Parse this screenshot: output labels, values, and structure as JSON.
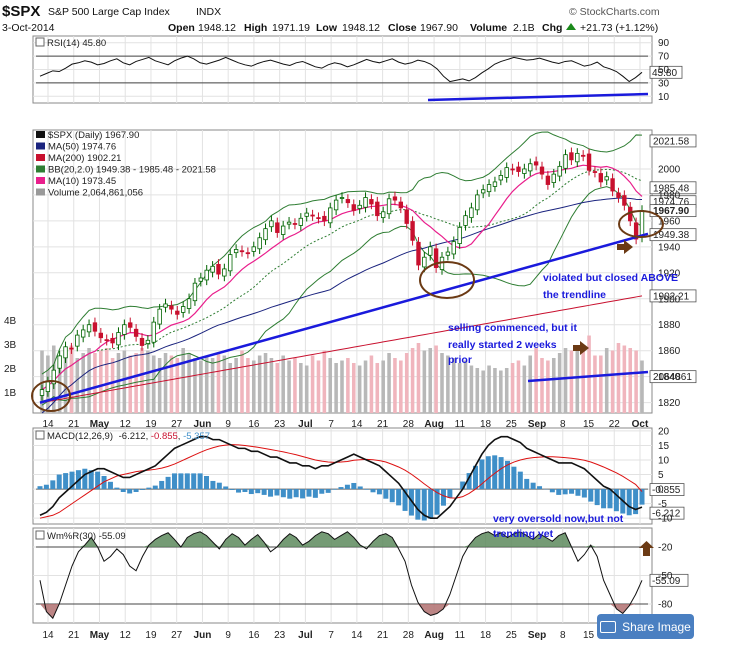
{
  "header": {
    "symbol": "$SPX",
    "name": "S&P 500 Large Cap Index",
    "exchange": "INDX",
    "date": "3-Oct-2014",
    "open_label": "Open",
    "open": "1948.12",
    "high_label": "High",
    "high": "1971.19",
    "low_label": "Low",
    "low": "1948.12",
    "close_label": "Close",
    "close": "1967.90",
    "volume_label": "Volume",
    "volume": "2.1B",
    "chg_label": "Chg",
    "chg": "+21.73 (+1.12%)",
    "brand": "© StockCharts.com",
    "up_icon": "up-arrow-icon"
  },
  "share_button": {
    "label": "Share Image",
    "icon": "camera-icon"
  },
  "colors": {
    "up": "#006400",
    "down": "#c8102e",
    "ma50": "#1a237e",
    "ma200": "#c8102e",
    "bb": "#2e7d32",
    "ma10": "#e91e8c",
    "macd_hist": "#3f8fc8",
    "annot": "#1a1adc",
    "arrow": "#6b3a14"
  },
  "chart_data": [
    {
      "type": "line",
      "panel": "RSI",
      "title": "RSI(14) 45.80",
      "y_ticks": [
        90,
        70,
        50,
        30,
        10
      ],
      "ylim": [
        0,
        100
      ],
      "value_label": "45.80",
      "reference_lines": [
        70,
        30
      ],
      "values": [
        40,
        44,
        48,
        47,
        52,
        58,
        60,
        63,
        61,
        57,
        59,
        63,
        66,
        60,
        57,
        62,
        65,
        68,
        63,
        60,
        57,
        63,
        67,
        70,
        66,
        60,
        58,
        61,
        64,
        68,
        64,
        60,
        57,
        55,
        59,
        62,
        64,
        61,
        58,
        56,
        60,
        62,
        58,
        54,
        52,
        57,
        60,
        58,
        54,
        57,
        61,
        65,
        62,
        60,
        63,
        66,
        61,
        58,
        60,
        64,
        62,
        58,
        51,
        40,
        32,
        34,
        36,
        33,
        38,
        45,
        51,
        58,
        62,
        65,
        68,
        66,
        64,
        65,
        67,
        64,
        61,
        59,
        62,
        63,
        59,
        55,
        57,
        61,
        54,
        51,
        47,
        40,
        32,
        38,
        45.8
      ]
    },
    {
      "type": "candlestick",
      "panel": "Price",
      "title": "$SPX (Daily) 1967.90",
      "y_ticks": [
        2000,
        1980,
        1960,
        1940,
        1920,
        1900,
        1880,
        1860,
        1840,
        1820
      ],
      "ylim": [
        1812,
        2030
      ],
      "x_ticks": [
        "14",
        "21",
        "May",
        "12",
        "19",
        "27",
        "Jun",
        "9",
        "16",
        "23",
        "Jul",
        "7",
        "14",
        "21",
        "28",
        "Aug",
        "11",
        "18",
        "25",
        "Sep",
        "8",
        "15",
        "22",
        "Oct"
      ],
      "legend": [
        {
          "label": "$SPX (Daily) 1967.90",
          "color": "#111111"
        },
        {
          "label": "MA(50) 1974.76",
          "color": "#1a237e"
        },
        {
          "label": "MA(200) 1902.21",
          "color": "#c8102e"
        },
        {
          "label": "BB(20,2.0) 1949.38 - 1985.48 - 2021.58",
          "color": "#2e7d32"
        },
        {
          "label": "MA(10) 1973.45",
          "color": "#e91e8c"
        },
        {
          "label": "Volume 2,064,861,056",
          "color": "#999999"
        }
      ],
      "right_labels": [
        {
          "value": 2021.58,
          "label": "2021.58"
        },
        {
          "value": 1985.48,
          "label": "1985.48"
        },
        {
          "value": 1974.76,
          "label": "1974.76"
        },
        {
          "value": 1967.9,
          "label": "1967.90"
        },
        {
          "value": 1949.38,
          "label": "1949.38"
        },
        {
          "value": 1902.21,
          "label": "1902.21"
        },
        {
          "value": 1840.0,
          "label": "2064861"
        }
      ],
      "closes": [
        1830,
        1836,
        1845,
        1856,
        1863,
        1862,
        1872,
        1876,
        1880,
        1875,
        1870,
        1868,
        1866,
        1874,
        1880,
        1878,
        1871,
        1864,
        1868,
        1882,
        1892,
        1896,
        1892,
        1888,
        1894,
        1900,
        1912,
        1916,
        1922,
        1925,
        1919,
        1923,
        1934,
        1938,
        1937,
        1935,
        1940,
        1947,
        1954,
        1960,
        1951,
        1956,
        1959,
        1958,
        1962,
        1966,
        1964,
        1962,
        1960,
        1970,
        1976,
        1978,
        1974,
        1968,
        1972,
        1978,
        1973,
        1964,
        1967,
        1977,
        1976,
        1970,
        1958,
        1945,
        1926,
        1932,
        1940,
        1924,
        1932,
        1936,
        1944,
        1955,
        1964,
        1970,
        1980,
        1984,
        1988,
        1990,
        1995,
        2001,
        2000,
        1998,
        2000,
        2004,
        2003,
        1996,
        1988,
        1996,
        2002,
        2011,
        2007,
        2012,
        2010,
        1999,
        1998,
        1990,
        1994,
        1983,
        1978,
        1972,
        1960,
        1946,
        1968
      ],
      "volumes_billion": [
        2.5,
        2.3,
        2.7,
        2.3,
        2.5,
        2.7,
        2.2,
        2.4,
        2.6,
        2.4,
        2.5,
        2.6,
        2.2,
        2.4,
        2.5,
        2.3,
        2.4,
        2.6,
        2.5,
        2.3,
        2.2,
        2.4,
        2.3,
        2.2,
        2.6,
        2.4,
        2.2,
        2.1,
        2.3,
        2.2,
        2.4,
        2.3,
        2.0,
        2.2,
        2.5,
        2.2,
        2.1,
        2.3,
        2.4,
        2.2,
        2.0,
        2.3,
        2.1,
        2.2,
        2.0,
        1.9,
        2.3,
        2.1,
        2.5,
        2.2,
        2.0,
        2.1,
        2.2,
        2.0,
        1.9,
        2.1,
        2.3,
        2.0,
        2.1,
        2.4,
        2.2,
        2.1,
        2.4,
        2.6,
        2.8,
        2.5,
        2.6,
        2.7,
        2.4,
        2.3,
        2.2,
        2.0,
        2.1,
        1.9,
        1.8,
        1.7,
        1.9,
        1.8,
        1.7,
        1.8,
        2.0,
        2.1,
        1.9,
        2.3,
        2.6,
        2.2,
        2.1,
        2.2,
        2.4,
        2.6,
        2.5,
        2.7,
        2.5,
        3.1,
        2.3,
        2.3,
        2.6,
        2.5,
        2.8,
        2.7,
        2.6,
        2.5,
        2.1
      ],
      "volume_axis": [
        "4B",
        "3B",
        "2B",
        "1B"
      ]
    },
    {
      "type": "line",
      "panel": "MACD",
      "title": "MACD(12,26,9) -6.212, -0.855, -5.357",
      "macd_label": "MACD(12,26,9)",
      "macd_value": "-6.212",
      "signal_value": "-0.855",
      "hist_value": "-5.357",
      "y_ticks": [
        20,
        15,
        10,
        5,
        0,
        -5,
        -10
      ],
      "ylim": [
        -12,
        21
      ],
      "value_labels": [
        "-0.855",
        "-6.212"
      ],
      "macd": [
        -9,
        -8,
        -6,
        -3,
        -1,
        1,
        3,
        5,
        6,
        7,
        7,
        6,
        5,
        4,
        4,
        5,
        6,
        7,
        8,
        10,
        12,
        14,
        15,
        16,
        17,
        18,
        18,
        17,
        17,
        16,
        15,
        14,
        14,
        13,
        13,
        12,
        11,
        11,
        10,
        9,
        9,
        8,
        8,
        7,
        8,
        8,
        9,
        10,
        11,
        12,
        11,
        10,
        9,
        8,
        6,
        4,
        2,
        -1,
        -4,
        -7,
        -9,
        -10,
        -10,
        -8,
        -6,
        -3,
        0,
        4,
        8,
        12,
        15,
        17,
        18,
        18,
        17,
        16,
        14,
        13,
        12,
        11,
        10,
        9,
        9,
        9,
        8,
        7,
        5,
        3,
        1,
        0,
        -2,
        -4,
        -6,
        -7,
        -6.2
      ],
      "signal": [
        -10,
        -9.5,
        -9,
        -8,
        -6.5,
        -5,
        -3.5,
        -2,
        -0.5,
        1,
        2.5,
        3.5,
        4.5,
        5,
        5.5,
        6,
        6.3,
        6.5,
        6.8,
        7.2,
        7.8,
        8.6,
        9.6,
        10.6,
        11.6,
        12.6,
        13.5,
        14.2,
        14.8,
        15.1,
        15.3,
        15.2,
        15,
        14.7,
        14.4,
        14,
        13.6,
        13.2,
        12.8,
        12.3,
        11.8,
        11.2,
        10.6,
        10,
        9.6,
        9.3,
        9.2,
        9.3,
        9.5,
        9.9,
        10.1,
        10.2,
        10.1,
        9.8,
        9.3,
        8.5,
        7.6,
        6.5,
        5.1,
        3.5,
        1.8,
        0.2,
        -1.2,
        -2.3,
        -3,
        -3.1,
        -2.6,
        -1.5,
        0,
        1.8,
        3.7,
        5.4,
        7,
        8.3,
        9.3,
        10,
        10.5,
        10.8,
        11,
        11.1,
        11.1,
        11,
        10.8,
        10.6,
        10.3,
        9.9,
        9.3,
        8.5,
        7.6,
        6.6,
        5.6,
        4.4,
        3,
        1.6,
        -0.855
      ]
    },
    {
      "type": "line",
      "panel": "Williams %R",
      "title": "Wm%R(30) -55.09",
      "y_ticks": [
        -20,
        -50,
        -80
      ],
      "ylim": [
        -100,
        0
      ],
      "value_label": "-55.09",
      "reference_lines": [
        -20,
        -80
      ],
      "values": [
        -55,
        -88,
        -95,
        -80,
        -60,
        -40,
        -25,
        -18,
        -10,
        -20,
        -35,
        -30,
        -22,
        -28,
        -40,
        -45,
        -30,
        -18,
        -12,
        -8,
        -5,
        -12,
        -20,
        -10,
        -6,
        -4,
        -8,
        -15,
        -22,
        -12,
        -6,
        -10,
        -18,
        -12,
        -7,
        -15,
        -25,
        -20,
        -12,
        -6,
        -10,
        -18,
        -14,
        -8,
        -4,
        -6,
        -12,
        -8,
        -4,
        -10,
        -18,
        -22,
        -14,
        -8,
        -6,
        -10,
        -22,
        -35,
        -60,
        -78,
        -88,
        -92,
        -90,
        -85,
        -70,
        -50,
        -30,
        -18,
        -10,
        -6,
        -4,
        -8,
        -5,
        -10,
        -6,
        -4,
        -8,
        -12,
        -6,
        -10,
        -14,
        -8,
        -5,
        -20,
        -35,
        -28,
        -18,
        -30,
        -55,
        -70,
        -85,
        -90,
        -82,
        -70,
        -55.09
      ]
    }
  ],
  "annotations": {
    "violated_line1": "violated but closed ABOVE",
    "violated_line2": "the trendline",
    "selling_line1": "selling commenced, but it",
    "selling_line2": "really started 2 weeks",
    "selling_line3": "prior",
    "oversold_line1": "very oversold now,but not",
    "oversold_line2": "trending yet"
  }
}
